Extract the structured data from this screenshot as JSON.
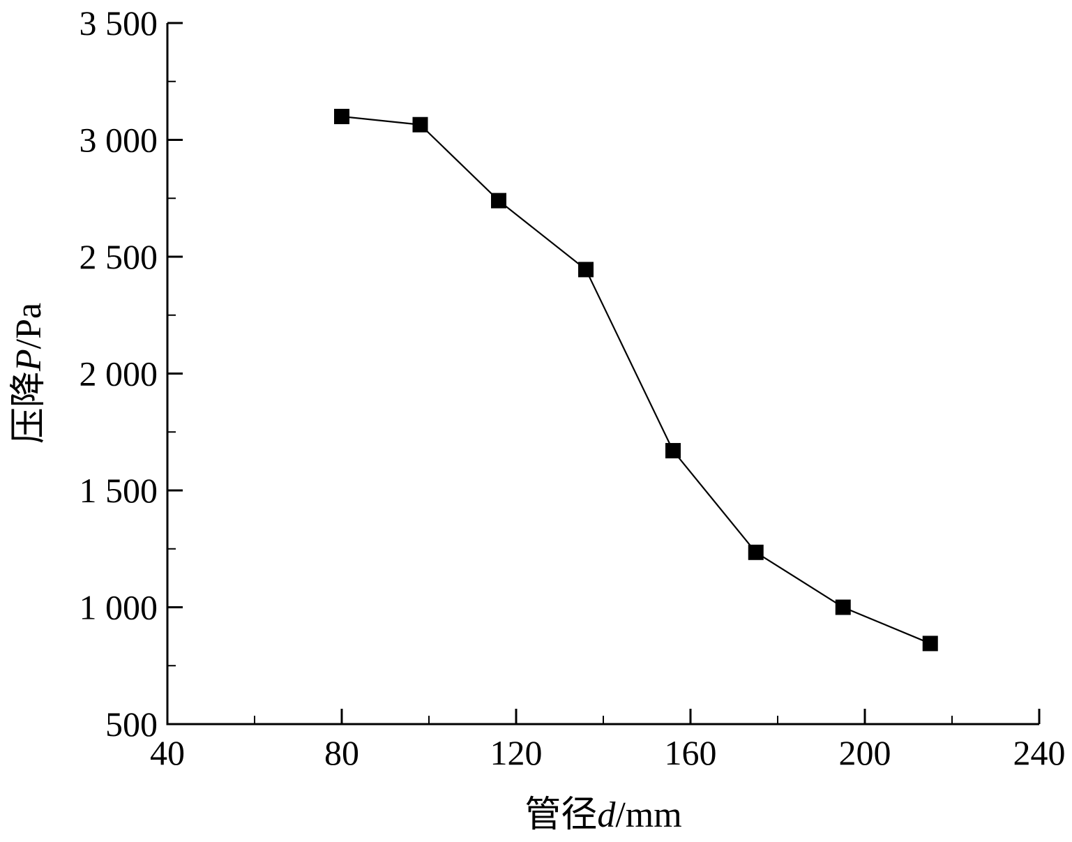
{
  "chart_data": {
    "type": "line",
    "title": "",
    "xlabel": {
      "prefix": "管径",
      "symbol": "d",
      "suffix": "/mm"
    },
    "ylabel": {
      "prefix": "压降",
      "symbol": "P",
      "suffix": "/Pa"
    },
    "xlim": [
      40,
      240
    ],
    "ylim": [
      500,
      3500
    ],
    "x_ticks": [
      40,
      80,
      120,
      160,
      200,
      240
    ],
    "x_tick_labels": [
      "40",
      "80",
      "120",
      "160",
      "200",
      "240"
    ],
    "y_ticks": [
      500,
      1000,
      1500,
      2000,
      2500,
      3000,
      3500
    ],
    "y_tick_labels": [
      "500",
      "1 000",
      "1 500",
      "2 000",
      "2 500",
      "3 000",
      "3 500"
    ],
    "x_minor_step": 20,
    "y_minor_step": 250,
    "grid": false,
    "legend": "none",
    "series": [
      {
        "marker": "square",
        "color": "#000000",
        "x": [
          80,
          98,
          116,
          136,
          156,
          175,
          195,
          215
        ],
        "y": [
          3100,
          3065,
          2740,
          2445,
          1670,
          1235,
          1000,
          845
        ]
      }
    ]
  }
}
